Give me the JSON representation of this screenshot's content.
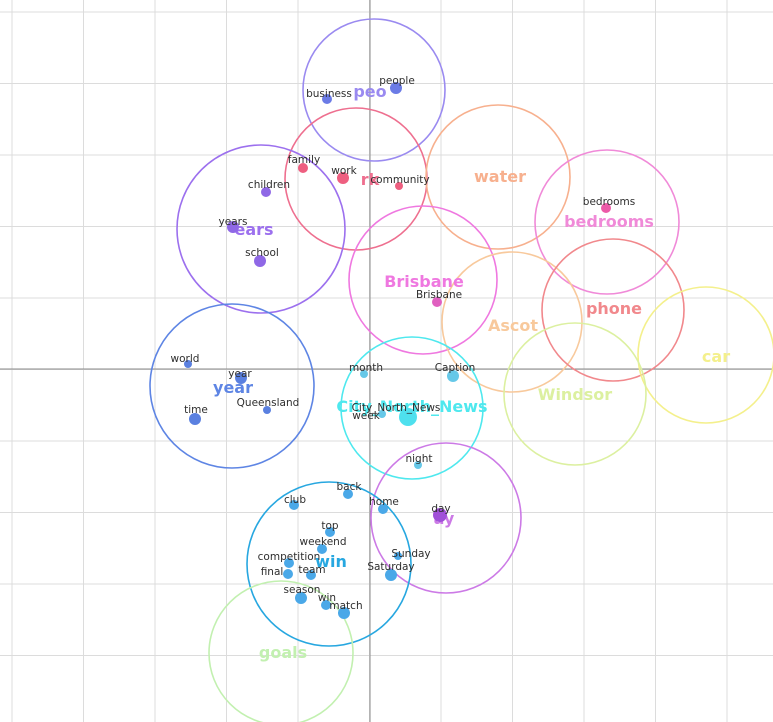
{
  "clusters": [
    {
      "label": "people",
      "color": "#9a8af0",
      "shown": "peo"
    },
    {
      "label": "work",
      "color": "#ee6f8f",
      "shown": "rk"
    },
    {
      "label": "water",
      "color": "#f7b08e",
      "shown": "water"
    },
    {
      "label": "bedrooms",
      "color": "#f08ad8",
      "shown": "bedrooms"
    },
    {
      "label": "years",
      "color": "#9c70ee",
      "shown": "ears"
    },
    {
      "label": "Brisbane",
      "color": "#ef78e0",
      "shown": "Brisbane"
    },
    {
      "label": "Ascot",
      "color": "#f8c99c",
      "shown": "Ascot"
    },
    {
      "label": "phone",
      "color": "#f1888c",
      "shown": "phone"
    },
    {
      "label": "car",
      "color": "#f4f08c",
      "shown": "car"
    },
    {
      "label": "year",
      "color": "#5e85e4",
      "shown": "year"
    },
    {
      "label": "City_North_News",
      "color": "#4ee8ee",
      "shown": "City_North_News"
    },
    {
      "label": "Windsor",
      "color": "#dcf0a0",
      "shown": "Windsor"
    },
    {
      "label": "day",
      "color": "#cc7ae6",
      "shown": "ay"
    },
    {
      "label": "win",
      "color": "#27a7e0",
      "shown": "win"
    },
    {
      "label": "goals",
      "color": "#c2f0b0",
      "shown": "goals"
    }
  ],
  "terms": [
    {
      "text": "business",
      "color": "#6b7be6",
      "label_color": "#333333"
    },
    {
      "text": "people",
      "color": "#6b7be6",
      "label_color": "#333333"
    },
    {
      "text": "family",
      "color": "#ee5f80",
      "label_color": "#333333"
    },
    {
      "text": "work",
      "color": "#ee5f80",
      "label_color": "#333333"
    },
    {
      "text": "community",
      "color": "#ee5f80",
      "label_color": "#333333"
    },
    {
      "text": "children",
      "color": "#8f68e6",
      "label_color": "#333333"
    },
    {
      "text": "years",
      "color": "#8f68e6",
      "label_color": "#333333"
    },
    {
      "text": "school",
      "color": "#8f68e6",
      "label_color": "#333333"
    },
    {
      "text": "bedrooms",
      "color": "#ec5aa8",
      "label_color": "#333333"
    },
    {
      "text": "Brisbane",
      "color": "#e060c0",
      "label_color": "#4a9a30"
    },
    {
      "text": "world",
      "color": "#5a80e0",
      "label_color": "#333333"
    },
    {
      "text": "year",
      "color": "#5a80e0",
      "label_color": "#333333"
    },
    {
      "text": "time",
      "color": "#5a80e0",
      "label_color": "#333333"
    },
    {
      "text": "Queensland",
      "color": "#5a80e0",
      "label_color": "#4a9a30"
    },
    {
      "text": "month",
      "color": "#66c8e8",
      "label_color": "#333333"
    },
    {
      "text": "Caption",
      "color": "#66c8e8",
      "label_color": "#4a9a30"
    },
    {
      "text": "City_North_News",
      "color": "#4ee0ee",
      "label_color": "#333333"
    },
    {
      "text": "week",
      "color": "#66c8e8",
      "label_color": "#333333"
    },
    {
      "text": "night",
      "color": "#66c8e8",
      "label_color": "#333333"
    },
    {
      "text": "back",
      "color": "#4aa8e8",
      "label_color": "#333333"
    },
    {
      "text": "club",
      "color": "#4aa8e8",
      "label_color": "#333333"
    },
    {
      "text": "home",
      "color": "#4aa8e8",
      "label_color": "#333333"
    },
    {
      "text": "day",
      "color": "#a050d8",
      "label_color": "#333333"
    },
    {
      "text": "top",
      "color": "#4aa8e8",
      "label_color": "#333333"
    },
    {
      "text": "weekend",
      "color": "#4aa8e8",
      "label_color": "#333333"
    },
    {
      "text": "Sunday",
      "color": "#4aa8e8",
      "label_color": "#4a9a30"
    },
    {
      "text": "competition",
      "color": "#4aa8e8",
      "label_color": "#333333"
    },
    {
      "text": "final",
      "color": "#4aa8e8",
      "label_color": "#333333"
    },
    {
      "text": "team",
      "color": "#4aa8e8",
      "label_color": "#333333"
    },
    {
      "text": "Saturday",
      "color": "#4aa8e8",
      "label_color": "#4a9a30"
    },
    {
      "text": "season",
      "color": "#4aa8e8",
      "label_color": "#333333"
    },
    {
      "text": "win",
      "color": "#4aa8e8",
      "label_color": "#333333"
    },
    {
      "text": "match",
      "color": "#4aa8e8",
      "label_color": "#333333"
    }
  ]
}
